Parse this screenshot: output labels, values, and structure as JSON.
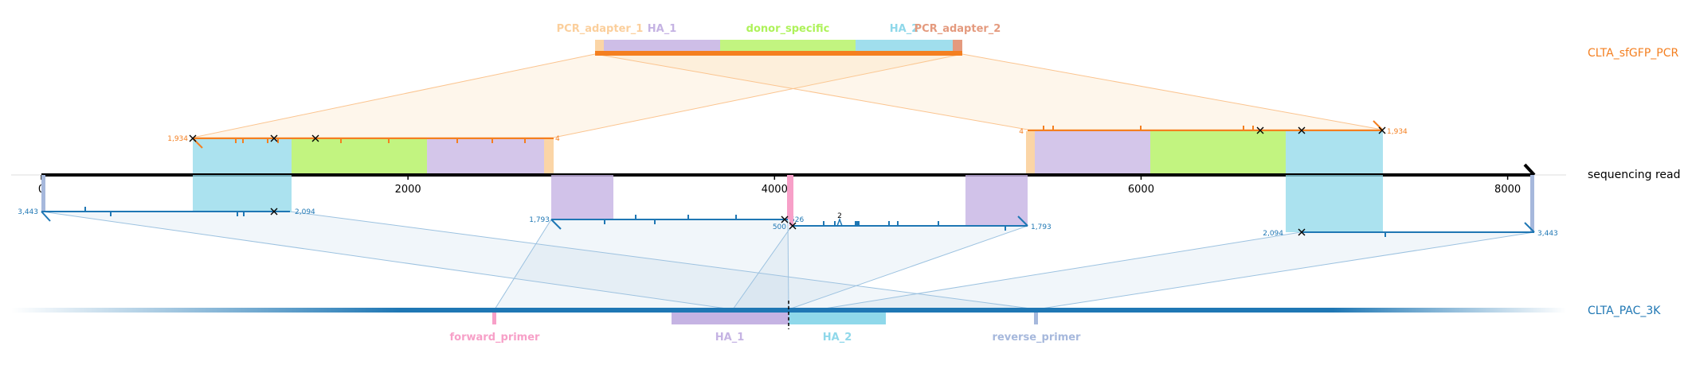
{
  "pcr_product": {
    "name": "CLTA_sfGFP_PCR",
    "color": "#f47f20",
    "features": [
      {
        "name": "PCR_adapter_1",
        "color": "#fbd5a6"
      },
      {
        "name": "HA_1",
        "color": "#c5b3e3"
      },
      {
        "name": "donor_specific",
        "color": "#b7f26a"
      },
      {
        "name": "HA_2",
        "color": "#8fd8ea"
      },
      {
        "name": "PCR_adapter_2",
        "color": "#e49a7e"
      }
    ]
  },
  "read": {
    "name": "sequencing read",
    "axis_ticks": [
      "0",
      "2000",
      "4000",
      "6000",
      "8000"
    ],
    "axis_range": [
      0,
      8080
    ]
  },
  "reference": {
    "name": "CLTA_PAC_3K",
    "color": "#1f77b4",
    "features": [
      {
        "name": "forward_primer",
        "color": "#f7a0c8"
      },
      {
        "name": "HA_1",
        "color": "#c5b3e3"
      },
      {
        "name": "HA_2",
        "color": "#8fd8ea"
      },
      {
        "name": "reverse_primer",
        "color": "#a6b8dc"
      }
    ]
  },
  "alignment_labels": {
    "pcr_left_start": "1,934",
    "pcr_left_end": "4",
    "pcr_right_start": "4",
    "pcr_right_end": "1,934",
    "ref1_start": "3,443",
    "ref1_end": "2,094",
    "ref2_start": "1,793",
    "ref2_end": "526",
    "ref3_start": "500",
    "ref3_end": "1,793",
    "ref3_count": "2",
    "ref4_start": "2,094",
    "ref4_end": "3,443"
  }
}
